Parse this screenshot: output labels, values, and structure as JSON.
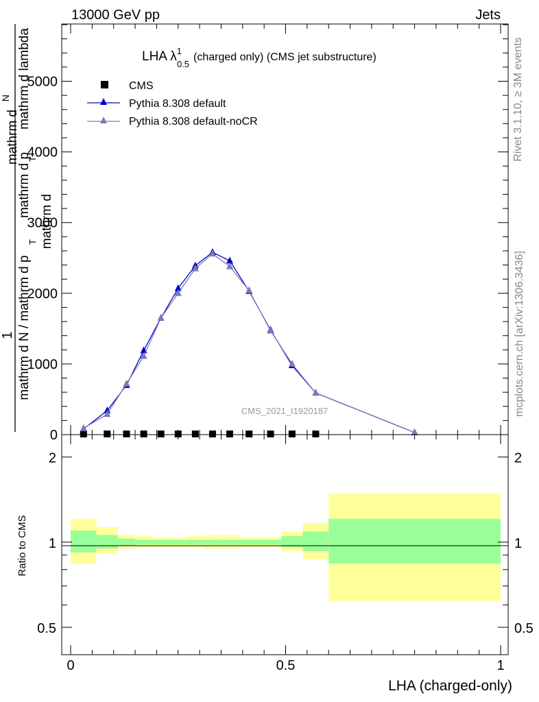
{
  "header": {
    "left": "13000 GeV pp",
    "right": "Jets"
  },
  "side": {
    "rivet": "Rivet 3.1.10, ≥ 3M events",
    "mcplots": "mcplots.cern.ch [arXiv:1306.3436]"
  },
  "chart_data": [
    {
      "type": "line",
      "title_main": "LHA λ",
      "title_sup": "1",
      "title_sub": "0.5",
      "title_rest": "(charged only) (CMS jet substructure)",
      "watermark": "CMS_2021_I1920187",
      "ylabel_numerator": "1",
      "ylabel_num_line1": "mathrm d",
      "ylabel_num_line2": "N",
      "ylabel_num_line3": "mathrm d p",
      "ylabel_num_sub": "T",
      "ylabel_num_line4": " mathrm d lambda",
      "ylabel_den_line1": "mathrm d N / mathrm d p",
      "ylabel_den_sub": "T",
      "ylabel_den_line2": " mathrm d",
      "xlim": [
        0,
        1
      ],
      "ylim": [
        0,
        5800
      ],
      "y_ticks": [
        {
          "value": 0,
          "label": "0"
        },
        {
          "value": 1000,
          "label": "1000"
        },
        {
          "value": 2000,
          "label": "2000"
        },
        {
          "value": 3000,
          "label": "3000"
        },
        {
          "value": 4000,
          "label": "4000"
        },
        {
          "value": 5000,
          "label": "5000"
        }
      ],
      "legend_position": "top-left",
      "series": [
        {
          "name": "CMS",
          "marker": "square",
          "color": "#000000",
          "x": [
            0.03,
            0.085,
            0.13,
            0.17,
            0.21,
            0.25,
            0.29,
            0.33,
            0.37,
            0.415,
            0.465,
            0.515,
            0.57
          ],
          "y": [
            0,
            0,
            0,
            0,
            0,
            0,
            0,
            0,
            0,
            0,
            0,
            0,
            0
          ]
        },
        {
          "name": "Pythia 8.308 default",
          "marker": "triangle",
          "color": "#0000cc",
          "x": [
            0.03,
            0.085,
            0.13,
            0.17,
            0.21,
            0.25,
            0.29,
            0.33,
            0.37,
            0.415,
            0.465,
            0.515,
            0.57,
            0.8
          ],
          "y": [
            80,
            340,
            700,
            1190,
            1650,
            2070,
            2390,
            2580,
            2460,
            2030,
            1480,
            980,
            590,
            30
          ]
        },
        {
          "name": "Pythia 8.308 default-noCR",
          "marker": "triangle",
          "color": "#7b7bb8",
          "x": [
            0.03,
            0.085,
            0.13,
            0.17,
            0.21,
            0.25,
            0.29,
            0.33,
            0.37,
            0.415,
            0.465,
            0.515,
            0.57,
            0.8
          ],
          "y": [
            90,
            290,
            720,
            1110,
            1650,
            2000,
            2350,
            2560,
            2380,
            2040,
            1470,
            1000,
            590,
            30
          ]
        }
      ]
    },
    {
      "type": "area",
      "ylabel": "Ratio to CMS",
      "xlabel": "LHA (charged-only)",
      "xlim": [
        0,
        1
      ],
      "y_scale": "log",
      "ylim": [
        0.4,
        2.4
      ],
      "x_ticks": [
        {
          "value": 0,
          "label": "0"
        },
        {
          "value": 0.5,
          "label": "0.5"
        },
        {
          "value": 1,
          "label": "1"
        }
      ],
      "y_ticks": [
        {
          "value": 0.5,
          "label": "0.5"
        },
        {
          "value": 1,
          "label": "1"
        },
        {
          "value": 2,
          "label": "2"
        }
      ],
      "bands": {
        "outer_color": "#ffff99",
        "inner_color": "#99ff99",
        "bins": [
          {
            "x0": 0.0,
            "x1": 0.06,
            "outer": [
              0.84,
              1.21
            ],
            "inner": [
              0.92,
              1.1
            ]
          },
          {
            "x0": 0.06,
            "x1": 0.11,
            "outer": [
              0.91,
              1.13
            ],
            "inner": [
              0.95,
              1.06
            ]
          },
          {
            "x0": 0.11,
            "x1": 0.15,
            "outer": [
              0.95,
              1.06
            ],
            "inner": [
              0.97,
              1.03
            ]
          },
          {
            "x0": 0.15,
            "x1": 0.19,
            "outer": [
              0.96,
              1.05
            ],
            "inner": [
              0.98,
              1.02
            ]
          },
          {
            "x0": 0.19,
            "x1": 0.23,
            "outer": [
              0.96,
              1.04
            ],
            "inner": [
              0.98,
              1.02
            ]
          },
          {
            "x0": 0.23,
            "x1": 0.27,
            "outer": [
              0.96,
              1.04
            ],
            "inner": [
              0.98,
              1.02
            ]
          },
          {
            "x0": 0.27,
            "x1": 0.31,
            "outer": [
              0.96,
              1.05
            ],
            "inner": [
              0.98,
              1.02
            ]
          },
          {
            "x0": 0.31,
            "x1": 0.35,
            "outer": [
              0.95,
              1.06
            ],
            "inner": [
              0.98,
              1.02
            ]
          },
          {
            "x0": 0.35,
            "x1": 0.39,
            "outer": [
              0.95,
              1.06
            ],
            "inner": [
              0.98,
              1.02
            ]
          },
          {
            "x0": 0.39,
            "x1": 0.44,
            "outer": [
              0.96,
              1.04
            ],
            "inner": [
              0.98,
              1.02
            ]
          },
          {
            "x0": 0.44,
            "x1": 0.49,
            "outer": [
              0.96,
              1.04
            ],
            "inner": [
              0.98,
              1.02
            ]
          },
          {
            "x0": 0.49,
            "x1": 0.54,
            "outer": [
              0.93,
              1.09
            ],
            "inner": [
              0.96,
              1.05
            ]
          },
          {
            "x0": 0.54,
            "x1": 0.6,
            "outer": [
              0.87,
              1.17
            ],
            "inner": [
              0.93,
              1.09
            ]
          },
          {
            "x0": 0.6,
            "x1": 1.0,
            "outer": [
              0.62,
              1.49
            ],
            "inner": [
              0.84,
              1.21
            ]
          }
        ]
      }
    }
  ]
}
